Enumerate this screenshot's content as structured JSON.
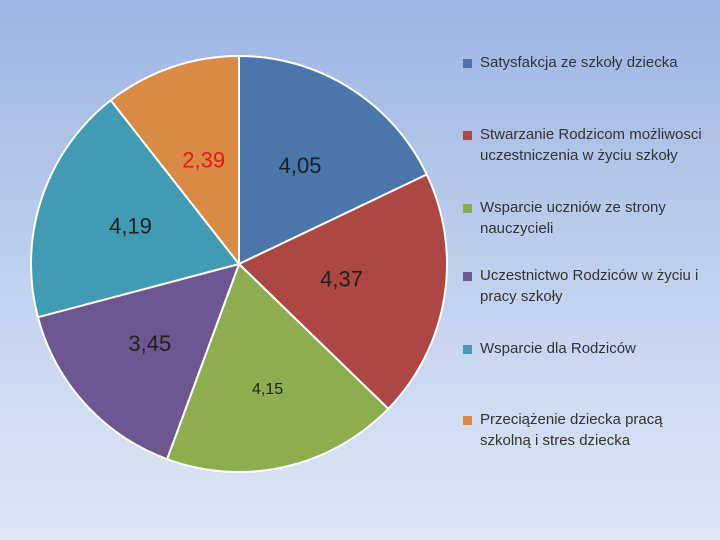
{
  "chart_data": {
    "type": "pie",
    "categories": [
      "Satysfakcja ze szkoły dziecka",
      "Stwarzanie Rodzicom możliwosci uczestniczenia w życiu szkoły",
      "Wsparcie uczniów ze strony nauczycieli",
      "Uczestnictwo Rodziców w życiu i pracy szkoły",
      "Wsparcie dla Rodziców",
      "Przeciążenie dziecka pracą szkolną i stres dziecka"
    ],
    "values": [
      4.05,
      4.37,
      4.15,
      3.45,
      4.19,
      2.39
    ],
    "data_labels": [
      "4,05",
      "4,37",
      "4,15",
      "3,45",
      "4,19",
      "2,39"
    ],
    "colors": [
      "#4a76ab",
      "#ad4744",
      "#8dae4e",
      "#6e5790",
      "#419cb3",
      "#d98a44"
    ],
    "label_colors": [
      "#1f1f1f",
      "#1f1f1f",
      "#1f1f1f",
      "#1f1f1f",
      "#1f1f1f",
      "#e8161b"
    ],
    "start_angle_deg": 0,
    "direction": "clockwise",
    "legend_position": "right"
  }
}
